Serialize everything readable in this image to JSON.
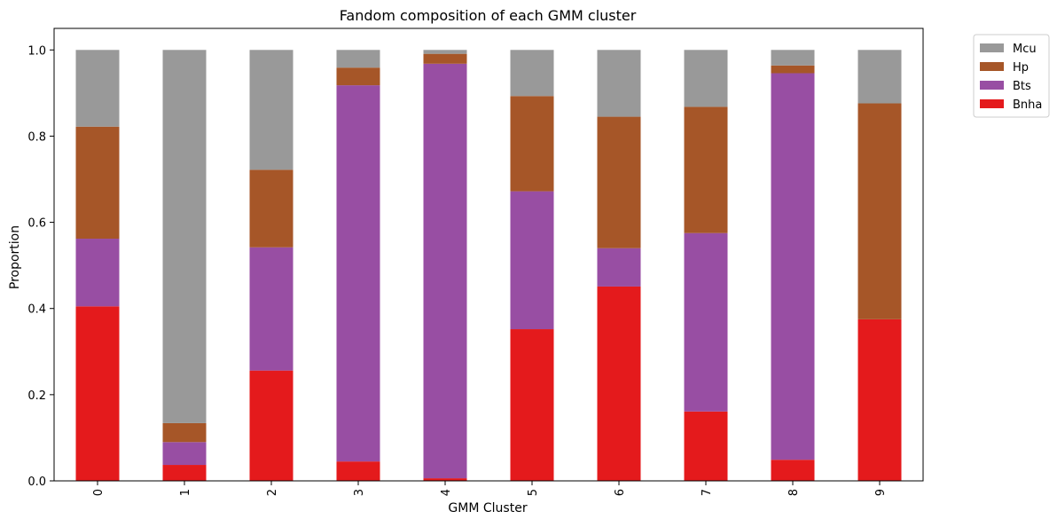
{
  "chart_data": {
    "type": "bar",
    "stacked": true,
    "title": "Fandom composition of each GMM cluster",
    "xlabel": "GMM Cluster",
    "ylabel": "Proportion",
    "ylim": [
      0,
      1.05
    ],
    "yticks": [
      0.0,
      0.2,
      0.4,
      0.6,
      0.8,
      1.0
    ],
    "ytick_labels": [
      "0.0",
      "0.2",
      "0.4",
      "0.6",
      "0.8",
      "1.0"
    ],
    "categories": [
      "0",
      "1",
      "2",
      "3",
      "4",
      "5",
      "6",
      "7",
      "8",
      "9"
    ],
    "grid": false,
    "legend_position": "outside top-right",
    "series": [
      {
        "name": "Bnha",
        "color": "#e41a1c",
        "values": [
          0.405,
          0.037,
          0.256,
          0.045,
          0.006,
          0.352,
          0.451,
          0.161,
          0.049,
          0.375
        ]
      },
      {
        "name": "Bts",
        "color": "#984ea3",
        "values": [
          0.157,
          0.053,
          0.286,
          0.873,
          0.962,
          0.32,
          0.089,
          0.414,
          0.897,
          0.0
        ]
      },
      {
        "name": "Hp",
        "color": "#a65628",
        "values": [
          0.26,
          0.044,
          0.18,
          0.041,
          0.023,
          0.221,
          0.305,
          0.293,
          0.018,
          0.501
        ]
      },
      {
        "name": "Mcu",
        "color": "#999999",
        "values": [
          0.178,
          0.866,
          0.278,
          0.041,
          0.009,
          0.107,
          0.155,
          0.132,
          0.036,
          0.124
        ]
      }
    ],
    "legend_order": [
      "Mcu",
      "Hp",
      "Bts",
      "Bnha"
    ]
  }
}
